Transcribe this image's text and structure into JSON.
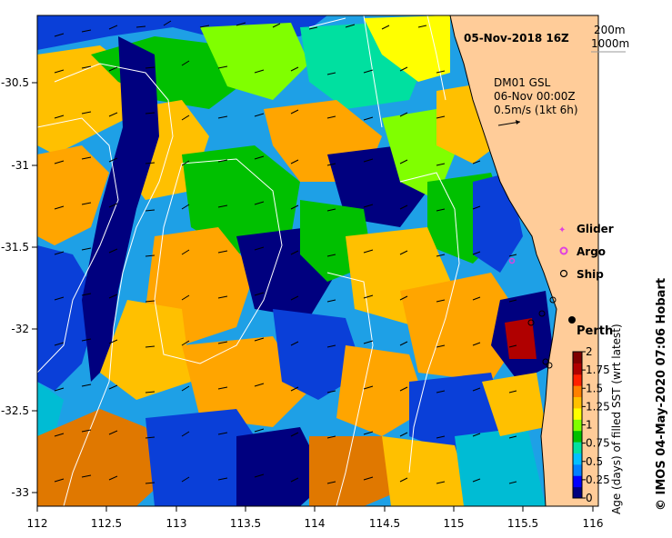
{
  "header": {
    "date": "05-Nov-2018 16Z",
    "contour_legend": [
      "200m",
      "1000m"
    ]
  },
  "currents": {
    "source": "DM01 GSL",
    "time": "06-Nov 00:00Z",
    "scale": "0.5m/s (1kt 6h)"
  },
  "place": {
    "name": "Perth"
  },
  "legend_items": [
    {
      "label": "Glider",
      "color": "#e040e0",
      "marker": "star-icon"
    },
    {
      "label": "Argo",
      "color": "#e040e0",
      "marker": "ring-icon"
    },
    {
      "label": "Ship",
      "color": "#000000",
      "marker": "circle-icon"
    }
  ],
  "axes": {
    "lon_ticks": [
      "112",
      "112.5",
      "113",
      "113.5",
      "114",
      "114.5",
      "115",
      "115.5",
      "116"
    ],
    "lat_ticks": [
      "-30.5",
      "-31",
      "-31.5",
      "-32",
      "-32.5",
      "-33"
    ]
  },
  "colorbar": {
    "title": "Age (days) of filled SST (wrt latest)",
    "ticks": [
      "2",
      "1.75",
      "1.5",
      "1.25",
      "1",
      "0.75",
      "0.5",
      "0.25",
      "0"
    ],
    "colors": [
      "#00007f",
      "#0000ff",
      "#0080ff",
      "#00c0ff",
      "#00e0a0",
      "#00c000",
      "#80ff00",
      "#ffff00",
      "#ffc000",
      "#ff8000",
      "#ff2000",
      "#b00000",
      "#7f0000"
    ]
  },
  "credit": "© IMOS 04-May-2020 07:06 Hobart",
  "colors": {
    "land": "#ffcc99",
    "coast": "#000000",
    "contour": "#ffffff"
  }
}
